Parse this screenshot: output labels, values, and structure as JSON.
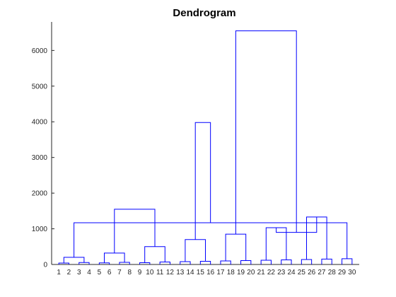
{
  "chart_data": {
    "type": "dendrogram",
    "title": "Dendrogram",
    "xlabel": "",
    "ylabel": "",
    "ylim": [
      0,
      6800
    ],
    "yticks": [
      0,
      1000,
      2000,
      3000,
      4000,
      5000,
      6000
    ],
    "ytick_labels": [
      "0",
      "1000",
      "2000",
      "3000",
      "4000",
      "5000",
      "6000"
    ],
    "line_color": "#0000ff",
    "grid": false,
    "legend": "none",
    "leaf_count": 30,
    "merges": [
      {
        "left": 0,
        "right": 1,
        "height": 40
      },
      {
        "left": 2,
        "right": 3,
        "height": 55
      },
      {
        "left": 4,
        "right": 5,
        "height": 45
      },
      {
        "left": 6,
        "right": 7,
        "height": 60
      },
      {
        "left": 8,
        "right": 9,
        "height": 50
      },
      {
        "left": 10,
        "right": 11,
        "height": 70
      },
      {
        "left": 12,
        "right": 13,
        "height": 80
      },
      {
        "left": 14,
        "right": 15,
        "height": 90
      },
      {
        "left": 16,
        "right": 17,
        "height": 100
      },
      {
        "left": 18,
        "right": 19,
        "height": 110
      },
      {
        "left": 20,
        "right": 21,
        "height": 120
      },
      {
        "left": 22,
        "right": 23,
        "height": 130
      },
      {
        "left": 24,
        "right": 25,
        "height": 140
      },
      {
        "left": 26,
        "right": 27,
        "height": 150
      },
      {
        "left": 28,
        "right": 29,
        "height": 160
      },
      {
        "left": 30,
        "right": 31,
        "height": 200
      },
      {
        "left": 32,
        "right": 33,
        "height": 320
      },
      {
        "left": 34,
        "right": 35,
        "height": 500
      },
      {
        "left": 36,
        "right": 37,
        "height": 700
      },
      {
        "left": 38,
        "right": 39,
        "height": 850
      },
      {
        "left": 40,
        "right": 41,
        "height": 1030
      },
      {
        "left": 42,
        "right": 43,
        "height": 1330
      },
      {
        "left": 44,
        "right": 45,
        "height": 1170
      },
      {
        "left": 46,
        "right": 47,
        "height": 1550
      },
      {
        "left": 48,
        "right": 52,
        "height": 3980
      },
      {
        "left": 50,
        "right": 51,
        "height": 900
      },
      {
        "left": 49,
        "right": 55,
        "height": 6550
      }
    ]
  }
}
